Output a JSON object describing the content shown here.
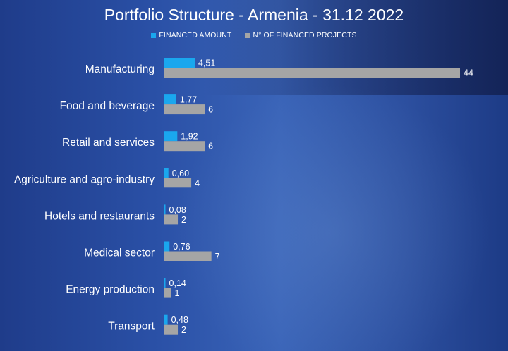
{
  "chart_data": {
    "type": "bar",
    "orientation": "horizontal",
    "title": "Portfolio Structure - Armenia - 31.12 2022",
    "categories": [
      "Manufacturing",
      "Food and beverage",
      "Retail and services",
      "Agriculture and agro-industry",
      "Hotels and restaurants",
      "Medical sector",
      "Energy production",
      "Transport"
    ],
    "series": [
      {
        "name": "FINANCED AMOUNT",
        "color": "#1aa7ee",
        "values": [
          4.51,
          1.77,
          1.92,
          0.6,
          0.08,
          0.76,
          0.14,
          0.48
        ],
        "labels": [
          "4,51",
          "1,77",
          "1,92",
          "0,60",
          "0,08",
          "0,76",
          "0,14",
          "0,48"
        ]
      },
      {
        "name": "N° OF FINANCED PROJECTS",
        "color": "#a5a5a5",
        "values": [
          44,
          6,
          6,
          4,
          2,
          7,
          1,
          2
        ],
        "labels": [
          "44",
          "6",
          "6",
          "4",
          "2",
          "7",
          "1",
          "2"
        ]
      }
    ],
    "legend_position": "top",
    "grid": false
  }
}
